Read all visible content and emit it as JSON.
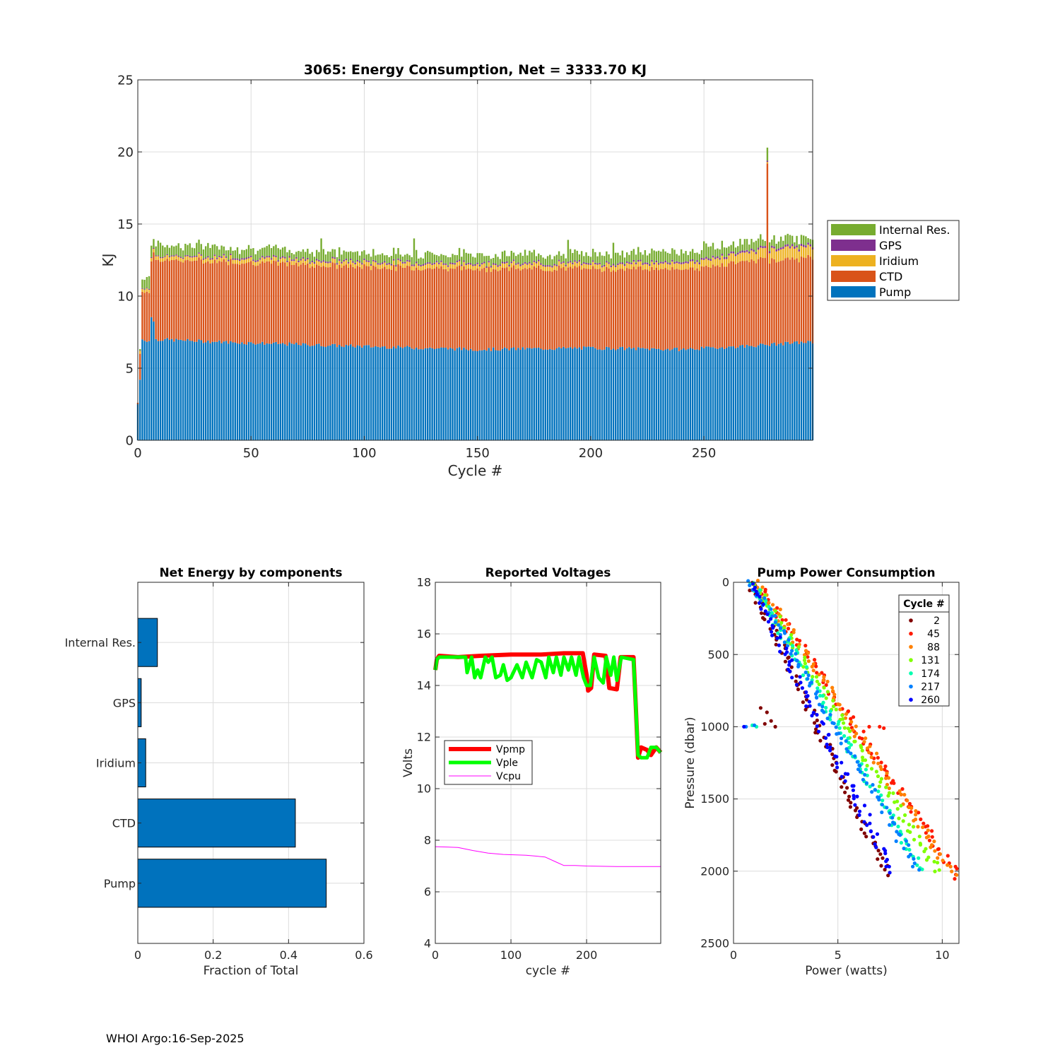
{
  "footer": "WHOI Argo:16-Sep-2025",
  "colors": {
    "pump": "#0072BD",
    "ctd": "#D95319",
    "iridium": "#EDB120",
    "gps": "#7E2F8E",
    "internal": "#77AC30",
    "vpmp": "#FF0000",
    "vple": "#00FF00",
    "vcpu": "#FF00FF"
  },
  "chart_data": [
    {
      "id": "energy",
      "type": "bar",
      "stacked": true,
      "title": "3065: Energy Consumption,  Net = 3333.70 KJ",
      "xlabel": "Cycle #",
      "ylabel": "KJ",
      "xlim": [
        0,
        298
      ],
      "ylim": [
        0,
        25
      ],
      "xticks": [
        0,
        50,
        100,
        150,
        200,
        250
      ],
      "yticks": [
        0,
        5,
        10,
        15,
        20,
        25
      ],
      "grid": true,
      "legend_position": "outside-right",
      "x_start": 0,
      "x_end": 298,
      "series": [
        {
          "name": "Pump",
          "color": "#0072BD",
          "keypoints": [
            [
              0,
              2.5
            ],
            [
              1,
              4.2
            ],
            [
              2,
              7.0
            ],
            [
              5,
              6.9
            ],
            [
              6,
              8.5
            ],
            [
              7,
              8.3
            ],
            [
              8,
              7.0
            ],
            [
              40,
              6.8
            ],
            [
              80,
              6.6
            ],
            [
              150,
              6.3
            ],
            [
              200,
              6.4
            ],
            [
              240,
              6.3
            ],
            [
              265,
              6.5
            ],
            [
              295,
              6.8
            ],
            [
              298,
              6.8
            ]
          ]
        },
        {
          "name": "CTD",
          "color": "#D95319",
          "keypoints": [
            [
              0,
              0.1
            ],
            [
              1,
              1.8
            ],
            [
              2,
              3.3
            ],
            [
              5,
              3.4
            ],
            [
              6,
              4.0
            ],
            [
              8,
              5.5
            ],
            [
              40,
              5.6
            ],
            [
              100,
              5.5
            ],
            [
              150,
              5.6
            ],
            [
              200,
              5.5
            ],
            [
              250,
              5.6
            ],
            [
              270,
              5.9
            ],
            [
              298,
              5.8
            ]
          ]
        },
        {
          "name": "Iridium",
          "color": "#EDB120",
          "keypoints": [
            [
              0,
              0.0
            ],
            [
              1,
              0.2
            ],
            [
              2,
              0.2
            ],
            [
              8,
              0.25
            ],
            [
              100,
              0.3
            ],
            [
              200,
              0.3
            ],
            [
              240,
              0.4
            ],
            [
              270,
              0.6
            ],
            [
              285,
              0.8
            ],
            [
              298,
              0.7
            ]
          ]
        },
        {
          "name": "GPS",
          "color": "#7E2F8E",
          "keypoints": [
            [
              0,
              0.0
            ],
            [
              2,
              0.05
            ],
            [
              40,
              0.1
            ],
            [
              100,
              0.1
            ],
            [
              200,
              0.1
            ],
            [
              298,
              0.15
            ]
          ]
        },
        {
          "name": "Internal Res.",
          "color": "#77AC30",
          "keypoints": [
            [
              0,
              0.0
            ],
            [
              1,
              0.1
            ],
            [
              2,
              0.6
            ],
            [
              6,
              0.8
            ],
            [
              50,
              0.6
            ],
            [
              150,
              0.6
            ],
            [
              250,
              0.7
            ],
            [
              298,
              0.5
            ]
          ]
        }
      ],
      "spikes": [
        {
          "x": 81,
          "total": 14.0
        },
        {
          "x": 122,
          "total": 14.0
        },
        {
          "x": 190,
          "total": 13.9
        },
        {
          "x": 210,
          "total": 13.7
        },
        {
          "x": 250,
          "total": 13.8
        },
        {
          "x": 278,
          "total": 20.3,
          "pump": 6.6,
          "ctd": 12.6,
          "iridium": 0.1,
          "gps": 0.1,
          "internal": 0.9
        }
      ]
    },
    {
      "id": "components",
      "type": "bar",
      "orientation": "horizontal",
      "title": "Net Energy by components",
      "xlabel": "Fraction of Total",
      "ylabel": "",
      "xlim": [
        0,
        0.6
      ],
      "xticks": [
        0,
        0.2,
        0.4,
        0.6
      ],
      "grid": true,
      "color": "#0072BD",
      "categories": [
        "Internal Res.",
        "GPS",
        "Iridium",
        "CTD",
        "Pump"
      ],
      "values": [
        0.052,
        0.009,
        0.021,
        0.418,
        0.5
      ]
    },
    {
      "id": "voltages",
      "type": "line",
      "title": "Reported Voltages",
      "xlabel": "cycle #",
      "ylabel": "Volts",
      "xlim": [
        0,
        298
      ],
      "ylim": [
        4,
        18
      ],
      "xticks": [
        0,
        100,
        200
      ],
      "yticks": [
        4,
        6,
        8,
        10,
        12,
        14,
        16,
        18
      ],
      "grid": true,
      "legend_position": "left-middle",
      "series": [
        {
          "name": "Vpmp",
          "color": "#FF0000",
          "width": 6,
          "points": [
            [
              0,
              14.6
            ],
            [
              2,
              15.0
            ],
            [
              5,
              15.15
            ],
            [
              30,
              15.1
            ],
            [
              60,
              15.15
            ],
            [
              100,
              15.2
            ],
            [
              140,
              15.2
            ],
            [
              170,
              15.25
            ],
            [
              195,
              15.25
            ],
            [
              200,
              14.4
            ],
            [
              202,
              13.8
            ],
            [
              206,
              13.9
            ],
            [
              210,
              15.2
            ],
            [
              225,
              15.15
            ],
            [
              230,
              13.9
            ],
            [
              240,
              13.85
            ],
            [
              245,
              15.1
            ],
            [
              262,
              15.1
            ],
            [
              265,
              13.2
            ],
            [
              268,
              11.2
            ],
            [
              272,
              11.6
            ],
            [
              280,
              11.5
            ],
            [
              285,
              11.3
            ],
            [
              292,
              11.6
            ],
            [
              298,
              11.4
            ]
          ]
        },
        {
          "name": "Vple",
          "color": "#00FF00",
          "width": 5,
          "points": [
            [
              0,
              14.6
            ],
            [
              2,
              15.0
            ],
            [
              5,
              15.1
            ],
            [
              40,
              15.1
            ],
            [
              42,
              14.5
            ],
            [
              48,
              15.1
            ],
            [
              52,
              14.3
            ],
            [
              56,
              14.6
            ],
            [
              60,
              14.3
            ],
            [
              66,
              15.1
            ],
            [
              70,
              14.9
            ],
            [
              75,
              15.1
            ],
            [
              80,
              14.3
            ],
            [
              86,
              14.4
            ],
            [
              90,
              14.8
            ],
            [
              95,
              14.2
            ],
            [
              100,
              14.3
            ],
            [
              108,
              14.8
            ],
            [
              115,
              14.3
            ],
            [
              120,
              14.9
            ],
            [
              128,
              14.3
            ],
            [
              134,
              15.0
            ],
            [
              140,
              14.9
            ],
            [
              146,
              14.3
            ],
            [
              150,
              15.1
            ],
            [
              156,
              14.5
            ],
            [
              160,
              15.1
            ],
            [
              166,
              14.4
            ],
            [
              170,
              15.1
            ],
            [
              176,
              14.6
            ],
            [
              180,
              15.1
            ],
            [
              186,
              14.4
            ],
            [
              190,
              15.1
            ],
            [
              196,
              14.3
            ],
            [
              200,
              14.0
            ],
            [
              205,
              14.0
            ],
            [
              210,
              15.1
            ],
            [
              216,
              14.3
            ],
            [
              222,
              14.1
            ],
            [
              226,
              15.1
            ],
            [
              232,
              14.4
            ],
            [
              236,
              15.1
            ],
            [
              240,
              14.2
            ],
            [
              246,
              15.1
            ],
            [
              262,
              15.0
            ],
            [
              265,
              13.2
            ],
            [
              268,
              11.3
            ],
            [
              272,
              11.2
            ],
            [
              280,
              11.2
            ],
            [
              285,
              11.6
            ],
            [
              292,
              11.6
            ],
            [
              298,
              11.4
            ]
          ]
        },
        {
          "name": "Vcpu",
          "color": "#FF00FF",
          "width": 1,
          "points": [
            [
              0,
              7.75
            ],
            [
              30,
              7.72
            ],
            [
              50,
              7.6
            ],
            [
              70,
              7.5
            ],
            [
              90,
              7.45
            ],
            [
              120,
              7.42
            ],
            [
              145,
              7.35
            ],
            [
              160,
              7.15
            ],
            [
              170,
              7.02
            ],
            [
              185,
              7.02
            ],
            [
              200,
              7.0
            ],
            [
              240,
              6.98
            ],
            [
              298,
              6.98
            ]
          ]
        }
      ]
    },
    {
      "id": "pump_power",
      "type": "scatter",
      "title": "Pump Power Consumption",
      "xlabel": "Power (watts)",
      "ylabel": "Pressure (dbar)",
      "xlim": [
        0,
        10.8
      ],
      "ylim": [
        0,
        2500
      ],
      "y_reversed": true,
      "xticks": [
        0,
        5,
        10
      ],
      "yticks": [
        0,
        500,
        1000,
        1500,
        2000,
        2500
      ],
      "grid": true,
      "legend_title": "Cycle #",
      "legend_position": "top-right",
      "series": [
        {
          "name": "2",
          "color": "#800000",
          "line": [
            [
              0.8,
              0
            ],
            [
              7.3,
              2020
            ]
          ],
          "extra": [
            [
              1.3,
              870
            ],
            [
              1.6,
              900
            ],
            [
              1.8,
              960
            ],
            [
              2.0,
              1000
            ],
            [
              1.5,
              980
            ]
          ]
        },
        {
          "name": "45",
          "color": "#FF1A00",
          "line": [
            [
              1.1,
              0
            ],
            [
              10.8,
              2040
            ]
          ],
          "extra": [
            [
              6.5,
              1000
            ],
            [
              7.0,
              1000
            ],
            [
              7.2,
              1010
            ]
          ]
        },
        {
          "name": "88",
          "color": "#FF8000",
          "line": [
            [
              1.1,
              0
            ],
            [
              10.5,
              2020
            ]
          ],
          "extra": []
        },
        {
          "name": "131",
          "color": "#80FF00",
          "line": [
            [
              1.0,
              0
            ],
            [
              9.8,
              2000
            ]
          ],
          "extra": []
        },
        {
          "name": "174",
          "color": "#00FFB0",
          "line": [
            [
              0.9,
              0
            ],
            [
              9.0,
              1990
            ]
          ],
          "extra": [
            [
              0.9,
              990
            ],
            [
              1.1,
              1000
            ]
          ]
        },
        {
          "name": "217",
          "color": "#0080FF",
          "line": [
            [
              0.9,
              0
            ],
            [
              8.8,
              1980
            ]
          ],
          "extra": [
            [
              0.6,
              1000
            ],
            [
              1.0,
              990
            ]
          ]
        },
        {
          "name": "260",
          "color": "#0000FF",
          "line": [
            [
              0.8,
              0
            ],
            [
              7.6,
              2000
            ]
          ],
          "extra": [
            [
              0.5,
              1000
            ]
          ]
        }
      ]
    }
  ]
}
